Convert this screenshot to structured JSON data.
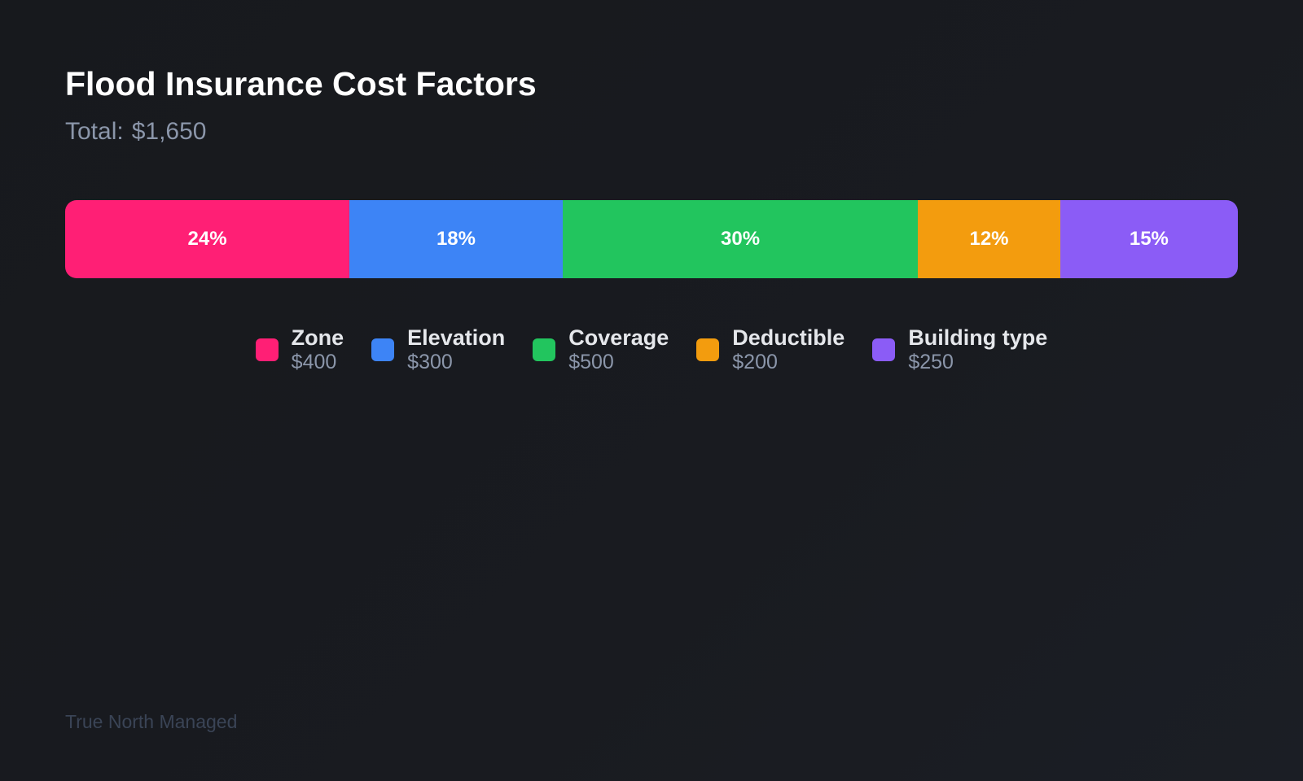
{
  "chart_data": {
    "type": "bar",
    "orientation": "horizontal-stacked",
    "title": "Flood Insurance Cost Factors",
    "subtitle": {
      "label": "Total:",
      "value": "$1,650"
    },
    "total": 1650,
    "categories": [
      "Zone",
      "Elevation",
      "Coverage",
      "Deductible",
      "Building type"
    ],
    "values": [
      400,
      300,
      500,
      200,
      250
    ],
    "value_labels": [
      "$400",
      "$300",
      "$500",
      "$200",
      "$250"
    ],
    "percent_labels": [
      "24%",
      "18%",
      "30%",
      "12%",
      "15%"
    ],
    "colors": [
      "#ff1f75",
      "#3d84f6",
      "#22c55e",
      "#f39c0e",
      "#8b5cf6"
    ],
    "legend": "bottom-center"
  },
  "footer": "True North Managed"
}
